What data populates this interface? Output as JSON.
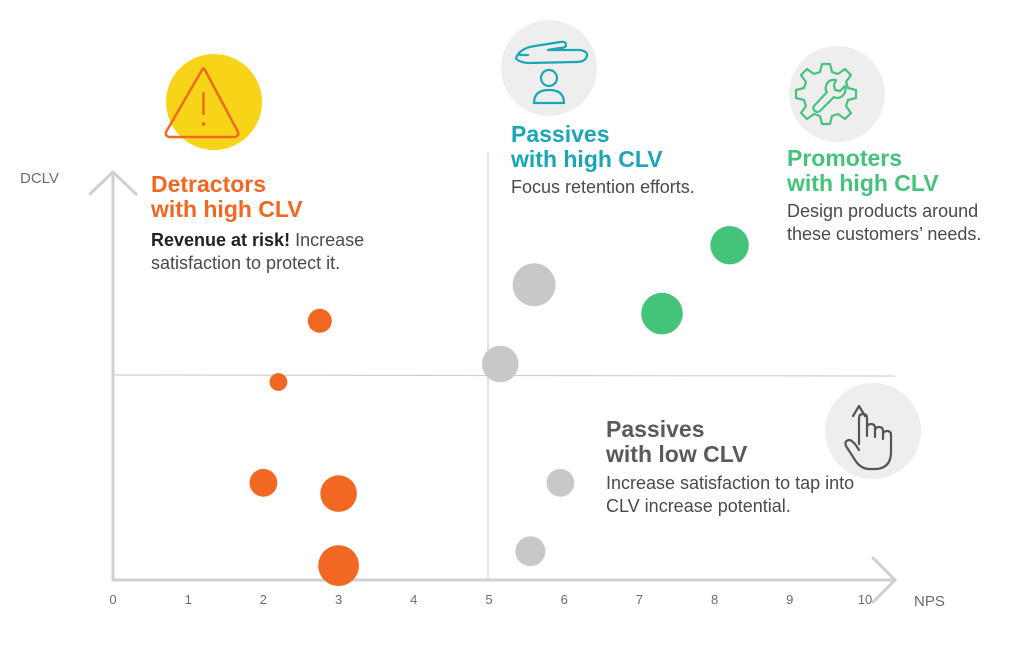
{
  "colors": {
    "detractor": "#f26722",
    "passive": "#c8c8c8",
    "promoter": "#44c37b",
    "axis": "#d0d0d0",
    "passives_high_title": "#1aa6b7",
    "passives_low_title": "#5a5a5a",
    "warning_circle": "#f7d417",
    "icon_circle": "#eeeeee",
    "icon_passive": "#1aa6b7",
    "icon_promoter": "#44c37b",
    "icon_hand": "#555555"
  },
  "icons": {
    "detractors": "warning-triangle-icon",
    "passives_high": "hand-over-person-icon",
    "promoters": "gear-wrench-icon",
    "passives_low": "pointing-hand-icon"
  },
  "quadrants": {
    "detractors": {
      "title_line1": "Detractors",
      "title_line2": "with high CLV",
      "body_bold": "Revenue at risk!",
      "body_rest": " Increase satisfaction to protect it."
    },
    "passives_high": {
      "title_line1": "Passives",
      "title_line2": "with high CLV",
      "body": "Focus retention efforts."
    },
    "promoters": {
      "title_line1": "Promoters",
      "title_line2": "with high CLV",
      "body": "Design products around these customers’ needs."
    },
    "passives_low": {
      "title_line1": "Passives",
      "title_line2": "with low CLV",
      "body": "Increase satisfaction to tap into CLV increase potential."
    }
  },
  "chart_data": {
    "type": "scatter",
    "xlabel": "NPS",
    "ylabel": "DCLV",
    "xlim": [
      0,
      10
    ],
    "x_ticks": [
      "0",
      "1",
      "2",
      "3",
      "4",
      "5",
      "6",
      "7",
      "8",
      "9",
      "10"
    ],
    "x_divider": 5,
    "y_divider": "middle",
    "grid": false,
    "legend": "none",
    "series": [
      {
        "group": "detractor",
        "points": [
          {
            "x": 2.75,
            "y": 0.72,
            "size": 0.09
          },
          {
            "x": 2.2,
            "y": 0.55,
            "size": 0.05
          },
          {
            "x": 2.0,
            "y": 0.27,
            "size": 0.12
          },
          {
            "x": 3.0,
            "y": 0.24,
            "size": 0.21
          },
          {
            "x": 3.0,
            "y": 0.04,
            "size": 0.26
          }
        ]
      },
      {
        "group": "passive",
        "points": [
          {
            "x": 5.6,
            "y": 0.82,
            "size": 0.29
          },
          {
            "x": 5.15,
            "y": 0.6,
            "size": 0.21
          },
          {
            "x": 5.95,
            "y": 0.27,
            "size": 0.12
          },
          {
            "x": 5.55,
            "y": 0.08,
            "size": 0.14
          }
        ]
      },
      {
        "group": "promoter",
        "points": [
          {
            "x": 7.3,
            "y": 0.74,
            "size": 0.27
          },
          {
            "x": 8.2,
            "y": 0.93,
            "size": 0.23
          }
        ]
      }
    ]
  }
}
